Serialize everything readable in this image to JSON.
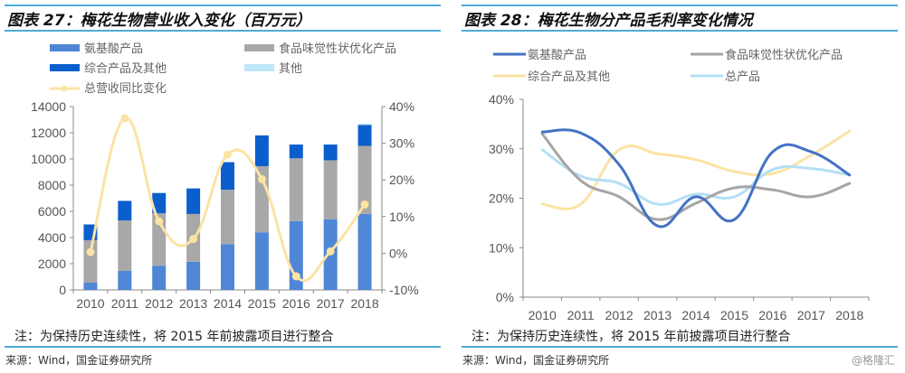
{
  "left": {
    "title": "图表 27：梅花生物营业收入变化（百万元）",
    "note": "注：为保持历史连续性，将 2015 年前披露项目进行整合",
    "source": "来源：Wind，国金证券研究所"
  },
  "right": {
    "title": "图表 28：梅花生物分产品毛利率变化情况",
    "note": "注：为保持历史连续性，将 2015 年前披露项目进行整合",
    "source": "来源：Wind，国金证券研究所",
    "watermark": "@格隆汇"
  },
  "chart_data": [
    {
      "type": "bar",
      "stacked": true,
      "title": "梅花生物营业收入变化（百万元）",
      "categories": [
        "2010",
        "2011",
        "2012",
        "2013",
        "2014",
        "2015",
        "2016",
        "2017",
        "2018"
      ],
      "ylim": [
        0,
        14000
      ],
      "yticks": [
        "0",
        "2000",
        "4000",
        "6000",
        "8000",
        "10000",
        "12000",
        "14000"
      ],
      "y2lim": [
        -10,
        40
      ],
      "y2ticks": [
        "-10%",
        "0%",
        "10%",
        "20%",
        "30%",
        "40%"
      ],
      "legend_position": "top",
      "series": [
        {
          "name": "氨基酸产品",
          "color": "#4F86D6",
          "values": [
            550,
            1450,
            1850,
            2150,
            3500,
            4400,
            5250,
            5400,
            5800
          ]
        },
        {
          "name": "食品味觉性状优化产品",
          "color": "#A8A8A8",
          "values": [
            3250,
            3850,
            4000,
            3650,
            4150,
            5050,
            4800,
            4500,
            5200
          ]
        },
        {
          "name": "综合产品及其他",
          "color": "#0B5FCC",
          "values": [
            1200,
            1500,
            1550,
            1950,
            2100,
            2350,
            1050,
            1200,
            1600
          ]
        },
        {
          "name": "其他",
          "color": "#BEE6F8",
          "values": [
            0,
            0,
            0,
            0,
            50,
            0,
            0,
            0,
            100
          ]
        }
      ],
      "line_series": {
        "name": "总营收同比变化",
        "color": "#FBE3A4",
        "axis": "right",
        "unit": "%",
        "values": [
          0.3,
          36.8,
          8.7,
          3.9,
          26.9,
          20.2,
          -6.3,
          0.5,
          13.3
        ]
      }
    },
    {
      "type": "line",
      "title": "梅花生物分产品毛利率变化情况",
      "categories": [
        "2010",
        "2011",
        "2012",
        "2013",
        "2014",
        "2015",
        "2016",
        "2017",
        "2018"
      ],
      "ylim": [
        0,
        40
      ],
      "yticks": [
        "0%",
        "10%",
        "20%",
        "30%",
        "40%"
      ],
      "legend_position": "top",
      "series": [
        {
          "name": "氨基酸产品",
          "color": "#4472C4",
          "values": [
            33.4,
            33.2,
            26.8,
            14.4,
            20.3,
            15.7,
            29.4,
            29.4,
            24.7
          ]
        },
        {
          "name": "食品味觉性状优化产品",
          "color": "#A5A5A5",
          "values": [
            33.0,
            23.6,
            20.3,
            15.7,
            19.0,
            22.1,
            21.7,
            20.3,
            23.0
          ]
        },
        {
          "name": "综合产品及其他",
          "color": "#FBE3A4",
          "values": [
            18.8,
            18.8,
            29.8,
            29.0,
            27.8,
            25.4,
            25.0,
            28.7,
            33.6
          ]
        },
        {
          "name": "总产品",
          "color": "#B4DFF5",
          "values": [
            29.8,
            24.5,
            23.0,
            18.8,
            20.8,
            20.3,
            25.8,
            26.0,
            24.7
          ]
        }
      ]
    }
  ]
}
